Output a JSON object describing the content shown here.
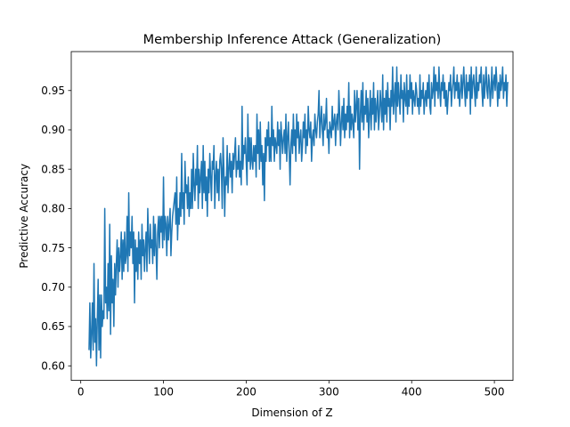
{
  "chart_data": {
    "type": "line",
    "title": "Membership Inference Attack (Generalization)",
    "xlabel": "Dimension of Z",
    "ylabel": "Predictive Accuracy",
    "xlim": [
      -11.5,
      522.5
    ],
    "ylim": [
      0.5815,
      0.9995
    ],
    "xticks": [
      0,
      100,
      200,
      300,
      400,
      500
    ],
    "yticks": [
      0.6,
      0.65,
      0.7,
      0.75,
      0.8,
      0.85,
      0.9,
      0.95
    ],
    "xtick_labels": [
      "0",
      "100",
      "200",
      "300",
      "400",
      "500"
    ],
    "ytick_labels": [
      "0.60",
      "0.65",
      "0.70",
      "0.75",
      "0.80",
      "0.85",
      "0.90",
      "0.95"
    ],
    "grid": false,
    "line_color": "#1f77b4",
    "series": [
      {
        "x_start": 10,
        "x_step": 1,
        "values": [
          0.62,
          0.68,
          0.61,
          0.64,
          0.68,
          0.62,
          0.73,
          0.63,
          0.66,
          0.6,
          0.66,
          0.71,
          0.62,
          0.69,
          0.61,
          0.69,
          0.65,
          0.67,
          0.66,
          0.8,
          0.68,
          0.7,
          0.66,
          0.73,
          0.67,
          0.78,
          0.64,
          0.74,
          0.68,
          0.71,
          0.65,
          0.73,
          0.69,
          0.73,
          0.76,
          0.7,
          0.75,
          0.72,
          0.74,
          0.77,
          0.71,
          0.76,
          0.72,
          0.77,
          0.73,
          0.74,
          0.79,
          0.72,
          0.82,
          0.74,
          0.77,
          0.75,
          0.79,
          0.73,
          0.77,
          0.68,
          0.76,
          0.72,
          0.75,
          0.71,
          0.77,
          0.73,
          0.76,
          0.71,
          0.78,
          0.74,
          0.76,
          0.72,
          0.75,
          0.77,
          0.72,
          0.8,
          0.76,
          0.73,
          0.78,
          0.75,
          0.76,
          0.73,
          0.79,
          0.74,
          0.78,
          0.75,
          0.71,
          0.77,
          0.79,
          0.75,
          0.79,
          0.77,
          0.79,
          0.75,
          0.84,
          0.76,
          0.79,
          0.78,
          0.74,
          0.79,
          0.76,
          0.78,
          0.8,
          0.74,
          0.77,
          0.79,
          0.8,
          0.81,
          0.82,
          0.78,
          0.84,
          0.76,
          0.8,
          0.78,
          0.82,
          0.79,
          0.87,
          0.8,
          0.82,
          0.78,
          0.86,
          0.82,
          0.83,
          0.8,
          0.84,
          0.79,
          0.82,
          0.8,
          0.85,
          0.8,
          0.87,
          0.83,
          0.81,
          0.85,
          0.83,
          0.88,
          0.8,
          0.85,
          0.82,
          0.84,
          0.86,
          0.8,
          0.88,
          0.82,
          0.86,
          0.81,
          0.84,
          0.79,
          0.85,
          0.82,
          0.87,
          0.84,
          0.81,
          0.86,
          0.85,
          0.88,
          0.8,
          0.84,
          0.86,
          0.82,
          0.85,
          0.81,
          0.86,
          0.87,
          0.85,
          0.8,
          0.89,
          0.85,
          0.79,
          0.84,
          0.83,
          0.88,
          0.82,
          0.85,
          0.87,
          0.84,
          0.86,
          0.82,
          0.87,
          0.85,
          0.87,
          0.89,
          0.84,
          0.86,
          0.85,
          0.88,
          0.84,
          0.86,
          0.83,
          0.93,
          0.85,
          0.88,
          0.87,
          0.89,
          0.86,
          0.83,
          0.92,
          0.86,
          0.89,
          0.85,
          0.89,
          0.86,
          0.85,
          0.88,
          0.86,
          0.88,
          0.84,
          0.92,
          0.87,
          0.9,
          0.85,
          0.91,
          0.86,
          0.88,
          0.83,
          0.87,
          0.81,
          0.89,
          0.86,
          0.9,
          0.88,
          0.91,
          0.86,
          0.89,
          0.86,
          0.93,
          0.88,
          0.9,
          0.86,
          0.89,
          0.88,
          0.87,
          0.91,
          0.88,
          0.9,
          0.85,
          0.91,
          0.89,
          0.87,
          0.89,
          0.9,
          0.87,
          0.92,
          0.86,
          0.89,
          0.91,
          0.87,
          0.83,
          0.88,
          0.9,
          0.87,
          0.92,
          0.88,
          0.9,
          0.86,
          0.92,
          0.89,
          0.91,
          0.87,
          0.89,
          0.9,
          0.86,
          0.88,
          0.91,
          0.89,
          0.92,
          0.87,
          0.9,
          0.88,
          0.93,
          0.9,
          0.89,
          0.91,
          0.86,
          0.89,
          0.9,
          0.88,
          0.92,
          0.9,
          0.89,
          0.91,
          0.92,
          0.95,
          0.89,
          0.91,
          0.93,
          0.9,
          0.88,
          0.92,
          0.9,
          0.91,
          0.94,
          0.89,
          0.9,
          0.87,
          0.91,
          0.9,
          0.89,
          0.93,
          0.9,
          0.91,
          0.92,
          0.88,
          0.91,
          0.92,
          0.9,
          0.95,
          0.92,
          0.88,
          0.91,
          0.93,
          0.9,
          0.94,
          0.89,
          0.92,
          0.9,
          0.93,
          0.91,
          0.96,
          0.89,
          0.93,
          0.9,
          0.92,
          0.91,
          0.89,
          0.95,
          0.91,
          0.93,
          0.95,
          0.9,
          0.94,
          0.85,
          0.92,
          0.95,
          0.91,
          0.96,
          0.9,
          0.93,
          0.92,
          0.95,
          0.91,
          0.94,
          0.89,
          0.92,
          0.95,
          0.9,
          0.94,
          0.92,
          0.96,
          0.9,
          0.94,
          0.91,
          0.93,
          0.95,
          0.9,
          0.92,
          0.95,
          0.93,
          0.91,
          0.97,
          0.9,
          0.94,
          0.92,
          0.95,
          0.91,
          0.96,
          0.93,
          0.94,
          0.9,
          0.95,
          0.93,
          0.98,
          0.92,
          0.94,
          0.96,
          0.91,
          0.98,
          0.93,
          0.96,
          0.94,
          0.92,
          0.97,
          0.94,
          0.95,
          0.91,
          0.96,
          0.94,
          0.93,
          0.97,
          0.92,
          0.95,
          0.93,
          0.97,
          0.94,
          0.96,
          0.92,
          0.95,
          0.94,
          0.93,
          0.96,
          0.95,
          0.93,
          0.94,
          0.92,
          0.97,
          0.93,
          0.95,
          0.94,
          0.96,
          0.92,
          0.94,
          0.95,
          0.93,
          0.96,
          0.94,
          0.97,
          0.93,
          0.92,
          0.96,
          0.94,
          0.95,
          0.98,
          0.93,
          0.97,
          0.95,
          0.96,
          0.94,
          0.98,
          0.95,
          0.93,
          0.96,
          0.95,
          0.97,
          0.94,
          0.96,
          0.93,
          0.95,
          0.92,
          0.94,
          0.96,
          0.95,
          0.97,
          0.93,
          0.95,
          0.96,
          0.98,
          0.94,
          0.96,
          0.95,
          0.97,
          0.94,
          0.96,
          0.93,
          0.95,
          0.97,
          0.94,
          0.96,
          0.98,
          0.95,
          0.93,
          0.97,
          0.94,
          0.96,
          0.95,
          0.97,
          0.92,
          0.98,
          0.94,
          0.96,
          0.97,
          0.95,
          0.93,
          0.98,
          0.94,
          0.96,
          0.95,
          0.97,
          0.96,
          0.98,
          0.95,
          0.93,
          0.97,
          0.94,
          0.96,
          0.98,
          0.95,
          0.94,
          0.97,
          0.96,
          0.93,
          0.95,
          0.98,
          0.94,
          0.96,
          0.97,
          0.95,
          0.98,
          0.96,
          0.93,
          0.96,
          0.94,
          0.97,
          0.95,
          0.96,
          0.98,
          0.94,
          0.96,
          0.95,
          0.97,
          0.93,
          0.96,
          0.96
        ]
      }
    ]
  }
}
